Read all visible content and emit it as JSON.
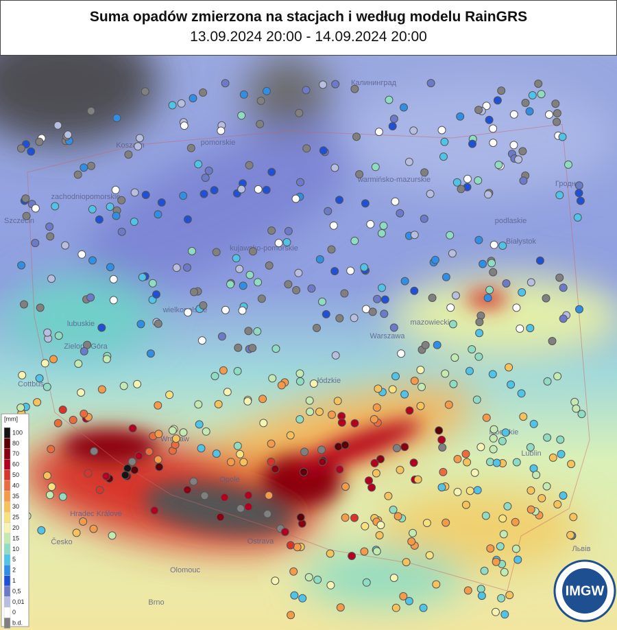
{
  "header": {
    "title": "Suma opadów zmierzona na stacjach i według modelu RainGRS",
    "subtitle": "13.09.2024 20:00 - 14.09.2024 20:00"
  },
  "legend": {
    "unit": "[mm]",
    "items": [
      {
        "label": "100",
        "color": "#141414"
      },
      {
        "label": "80",
        "color": "#5c0005"
      },
      {
        "label": "70",
        "color": "#8a0010"
      },
      {
        "label": "60",
        "color": "#b3001e"
      },
      {
        "label": "50",
        "color": "#d8342a"
      },
      {
        "label": "40",
        "color": "#ec6b3c"
      },
      {
        "label": "35",
        "color": "#f59a48"
      },
      {
        "label": "30",
        "color": "#f8c25a"
      },
      {
        "label": "25",
        "color": "#f9e17c"
      },
      {
        "label": "20",
        "color": "#f5f4b2"
      },
      {
        "label": "15",
        "color": "#c3eab0"
      },
      {
        "label": "10",
        "color": "#8edcc2"
      },
      {
        "label": "5",
        "color": "#4fc3e8"
      },
      {
        "label": "2",
        "color": "#2f8ee6"
      },
      {
        "label": "1",
        "color": "#1f50d8"
      },
      {
        "label": "0,5",
        "color": "#6c7bc9"
      },
      {
        "label": "0,01",
        "color": "#b8bee0"
      },
      {
        "label": "0",
        "color": "#ffffff"
      },
      {
        "label": "b.d.",
        "color": "#808080"
      }
    ]
  },
  "map_labels": [
    "Калининград",
    "Koszalin",
    "zachodniopomorskie",
    "pomorskie",
    "warmińsko-mazurskie",
    "Szczecin",
    "kujawsko-pomorskie",
    "podlaskie",
    "Białystok",
    "lubuskie",
    "Zielona Góra",
    "wielkopolskie",
    "mazowieckie",
    "Warszawa",
    "łódzkie",
    "lubelskie",
    "Lublin",
    "Wrocław",
    "Opole",
    "Ostrava",
    "Olomouc",
    "Česko",
    "Hradec Králové",
    "Brno",
    "Львів",
    "Гродна",
    "Cottbus"
  ],
  "logo": "IMGW"
}
